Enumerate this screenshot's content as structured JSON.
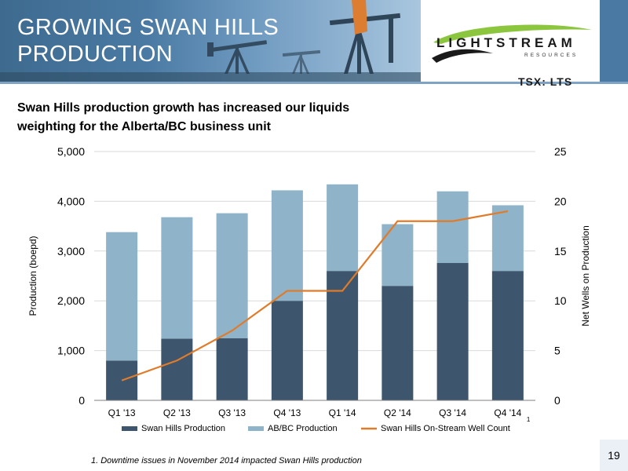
{
  "header": {
    "title_line1": "GROWING SWAN HILLS",
    "title_line2": "PRODUCTION",
    "logo_text": "LIGHTSTREAM",
    "logo_subtext": "RESOURCES",
    "ticker": "TSX: LTS",
    "colors": {
      "banner": "#4a7aa3",
      "logo_swoosh": "#8cc63f"
    }
  },
  "subtitle_line1": "Swan Hills production growth has increased our liquids",
  "subtitle_line2": "weighting for the Alberta/BC business unit",
  "chart_data": {
    "type": "bar",
    "stacked": true,
    "categories": [
      "Q1 '13",
      "Q2 '13",
      "Q3 '13",
      "Q4 '13",
      "Q1 '14",
      "Q2 '14",
      "Q3 '14",
      "Q4 '14"
    ],
    "category_footnote_marker": {
      "category": "Q4 '14",
      "marker": "1"
    },
    "series": [
      {
        "name": "Swan Hills Production",
        "type": "bar",
        "axis": "left",
        "color": "#3d566e",
        "values": [
          800,
          1240,
          1250,
          2000,
          2600,
          2300,
          2760,
          2600
        ]
      },
      {
        "name": "AB/BC Production",
        "type": "bar",
        "axis": "left",
        "color": "#8fb3c8",
        "values": [
          2580,
          2440,
          2510,
          2220,
          1740,
          1240,
          1440,
          1320
        ]
      },
      {
        "name": "Swan Hills On-Stream Well Count",
        "type": "line",
        "axis": "right",
        "color": "#e07b2a",
        "values": [
          2,
          4,
          7,
          11,
          11,
          18,
          18,
          19
        ]
      }
    ],
    "ylabel": "Production (boepd)",
    "ylim": [
      0,
      5000
    ],
    "yticks": [
      "0",
      "1,000",
      "2,000",
      "3,000",
      "4,000",
      "5,000"
    ],
    "y2label": "Net Wells on Production",
    "y2lim": [
      0,
      25
    ],
    "y2ticks": [
      "0",
      "5",
      "10",
      "15",
      "20",
      "25"
    ],
    "grid": true,
    "legend_position": "bottom"
  },
  "footnote": "1. Downtime issues in November 2014 impacted Swan Hills production",
  "page_number": "19"
}
